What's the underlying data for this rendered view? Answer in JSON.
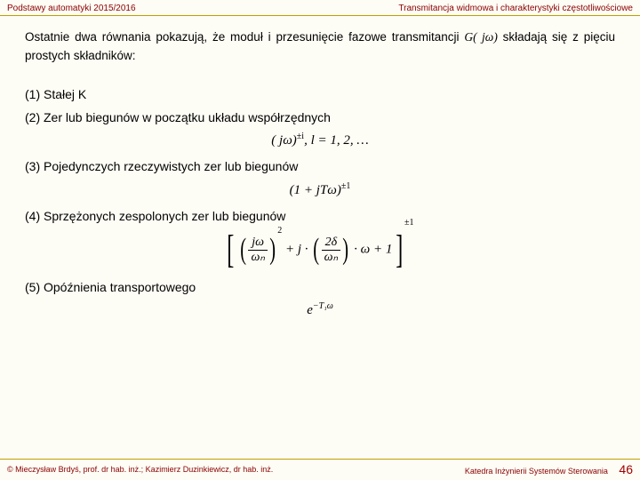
{
  "header": {
    "left": "Podstawy automatyki 2015/2016",
    "right": "Transmitancja widmowa i charakterystyki częstotliwościowe"
  },
  "intro": {
    "part1": "Ostatnie dwa równania pokazują, że moduł i przesunięcie fazowe transmitancji ",
    "math": "G( jω)",
    "part2": " składają się z pięciu prostych składników:"
  },
  "items": {
    "i1": "(1) Stałej K",
    "i2": "(2) Zer lub biegunów w początku układu współrzędnych",
    "i3": "(3) Pojedynczych rzeczywistych zer lub biegunów",
    "i4": "(4) Sprzężonych zespolonych zer lub biegunów",
    "i5": "(5) Opóźnienia transportowego"
  },
  "eq2": {
    "base": "( jω)",
    "exp": "±i",
    "tail": ",  l = 1, 2, …"
  },
  "eq3": {
    "base": "(1 + jTω)",
    "exp": "±1"
  },
  "eq4": {
    "t1_num": "jω",
    "t1_den": "ωₙ",
    "t1_pow": "2",
    "plus1": " + j · ",
    "t2_num": "2δ",
    "t2_den": "ωₙ",
    "tail": " · ω + 1",
    "outer_exp": "±1"
  },
  "eq5": {
    "e": "e",
    "exp": "−T₁ω"
  },
  "footer": {
    "left": "© Mieczysław Brdyś, prof. dr hab. inż.; Kazimierz Duzinkiewicz, dr hab. inż.",
    "right": "Katedra Inżynierii Systemów Sterowania",
    "page": "46"
  }
}
